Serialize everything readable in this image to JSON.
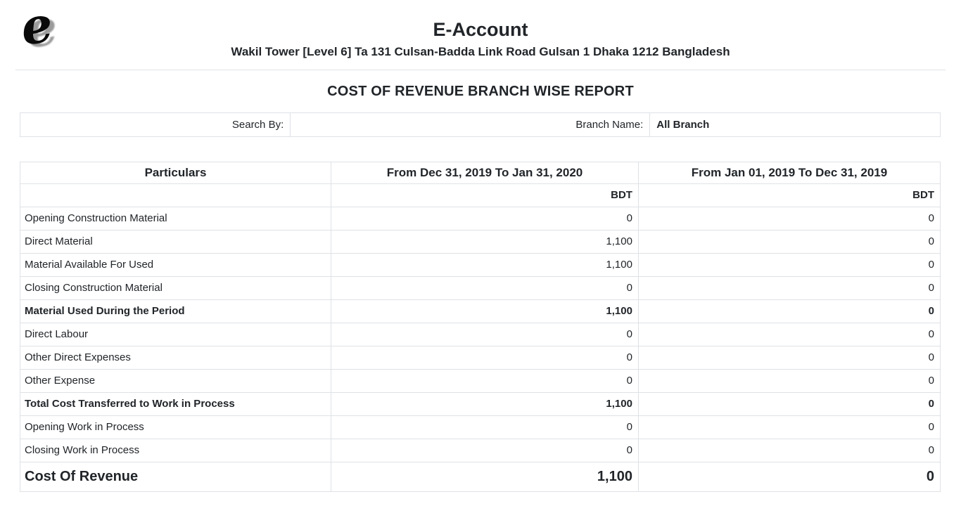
{
  "header": {
    "logo_letter": "e",
    "title": "E-Account",
    "address": "Wakil Tower [Level 6] Ta 131 Culsan-Badda Link Road Gulsan 1 Dhaka 1212 Bangladesh"
  },
  "report": {
    "title": "COST OF REVENUE BRANCH WISE REPORT"
  },
  "filter_bar": {
    "search_by_label": "Search By:",
    "branch_name_label": "Branch Name:",
    "branch_name_value": "All Branch"
  },
  "table": {
    "columns": [
      "Particulars",
      "From Dec 31, 2019 To Jan 31, 2020",
      "From Jan 01, 2019 To Dec 31, 2019"
    ],
    "currency_label": "BDT",
    "rows": [
      {
        "label": "Opening Construction Material",
        "period1": "0",
        "period2": "0",
        "bold": false
      },
      {
        "label": "Direct Material",
        "period1": "1,100",
        "period2": "0",
        "bold": false
      },
      {
        "label": "Material Available For Used",
        "period1": "1,100",
        "period2": "0",
        "bold": false
      },
      {
        "label": "Closing Construction Material",
        "period1": "0",
        "period2": "0",
        "bold": false
      },
      {
        "label": "Material Used During the Period",
        "period1": "1,100",
        "period2": "0",
        "bold": true
      },
      {
        "label": "Direct Labour",
        "period1": "0",
        "period2": "0",
        "bold": false
      },
      {
        "label": "Other Direct Expenses",
        "period1": "0",
        "period2": "0",
        "bold": false
      },
      {
        "label": "Other Expense",
        "period1": "0",
        "period2": "0",
        "bold": false
      },
      {
        "label": "Total Cost Transferred to Work in Process",
        "period1": "1,100",
        "period2": "0",
        "bold": true
      },
      {
        "label": "Opening Work in Process",
        "period1": "0",
        "period2": "0",
        "bold": false
      },
      {
        "label": "Closing Work in Process",
        "period1": "0",
        "period2": "0",
        "bold": false
      }
    ],
    "total_row": {
      "label": "Cost Of Revenue",
      "period1": "1,100",
      "period2": "0"
    }
  },
  "colors": {
    "text": "#212529",
    "border": "#dee2e6",
    "logo_shadow": "#9b9b9b"
  }
}
